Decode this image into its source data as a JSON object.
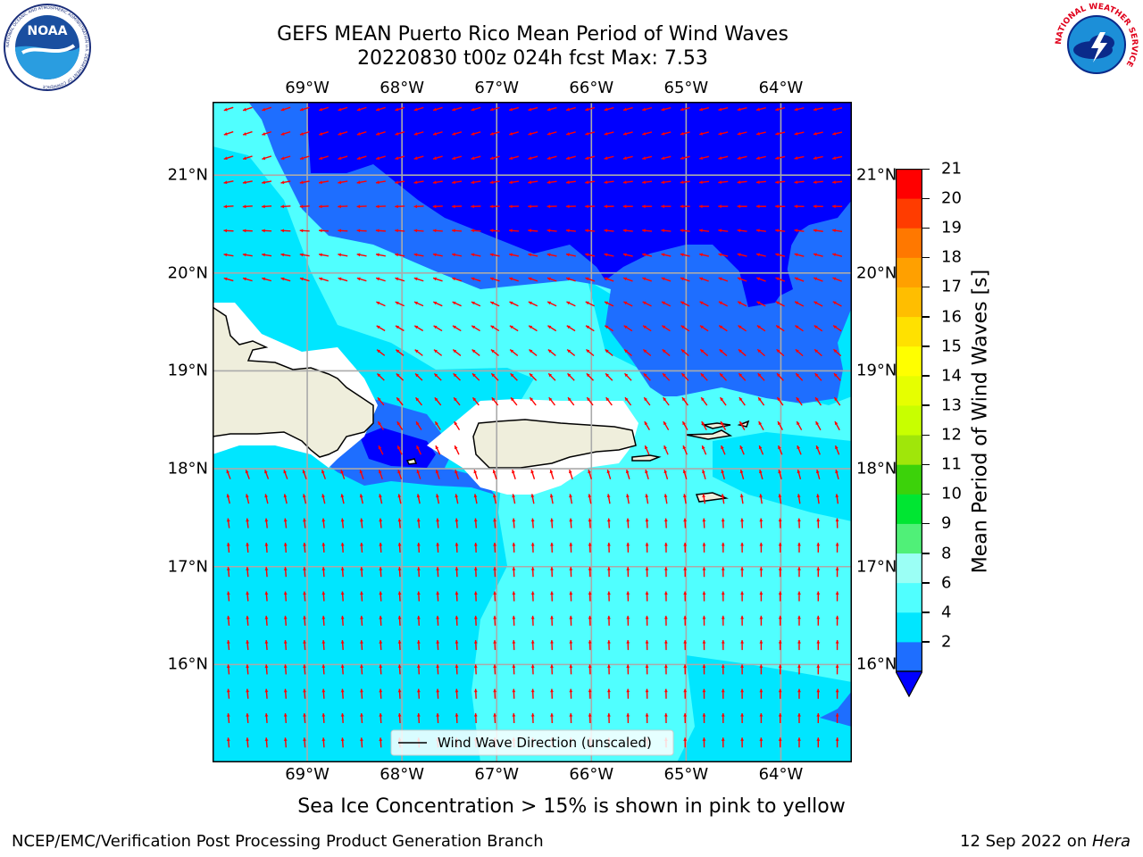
{
  "header": {
    "title_line1": "GEFS MEAN Puerto Rico Mean Period of Wind Waves",
    "title_line2": "20220830 t00z 024h fcst   Max: 7.53"
  },
  "logos": {
    "left": "NOAA",
    "left_ring": "NATIONAL OCEANIC AND ATMOSPHERIC ADMINISTRATION  U.S. DEPARTMENT OF COMMERCE",
    "right_ring": "NATIONAL WEATHER SERVICE"
  },
  "map": {
    "lon_labels": [
      "69°W",
      "68°W",
      "67°W",
      "66°W",
      "65°W",
      "64°W"
    ],
    "lat_labels": [
      "21°N",
      "20°N",
      "19°N",
      "18°N",
      "17°N",
      "16°N"
    ],
    "lon_range": [
      -70.0,
      -63.25
    ],
    "lat_range": [
      15.0,
      21.75
    ],
    "grid": true,
    "legend_label": "Wind Wave Direction (unscaled)",
    "legend_position": "bottom-center",
    "arrow_color": "#ff0000",
    "land_color": "#efeedc"
  },
  "colorbar": {
    "title": "Mean Period of Wind Waves [s]",
    "ticks": [
      "21",
      "20",
      "19",
      "18",
      "17",
      "16",
      "15",
      "14",
      "13",
      "12",
      "11",
      "10",
      "9",
      "8",
      "6",
      "4",
      "2"
    ],
    "colors_bottom_to_top": [
      "#1e6eff",
      "#00e6ff",
      "#50ffff",
      "#9bfff5",
      "#50f078",
      "#00e632",
      "#3cd20a",
      "#a0e60a",
      "#c8ff00",
      "#e6ff00",
      "#ffff00",
      "#ffe100",
      "#ffbe00",
      "#ffa000",
      "#ff7800",
      "#ff3c00",
      "#ff0000"
    ],
    "under_color": "#0000ff"
  },
  "footer": {
    "note": "Sea Ice Concentration > 15% is shown in pink to yellow",
    "left": "NCEP/EMC/Verification Post Processing Product Generation Branch",
    "right_prefix": "12 Sep 2022 on ",
    "right_host": "Hera"
  }
}
